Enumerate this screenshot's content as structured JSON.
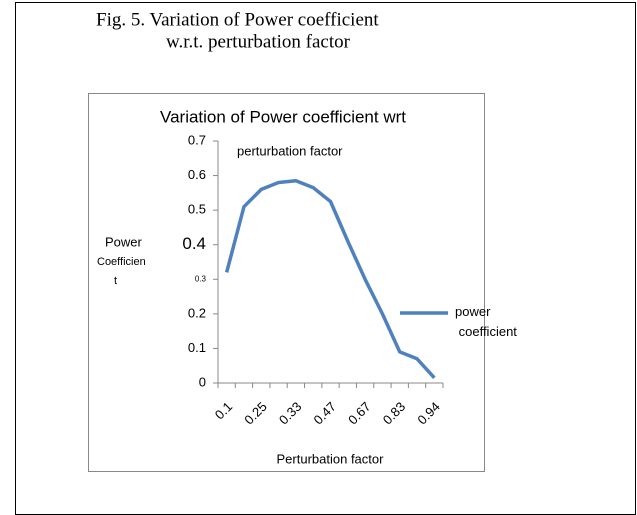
{
  "caption": [
    "Fig. 5. Variation of Power coefficient",
    "w.r.t. perturbation factor"
  ],
  "chart_data": {
    "type": "line",
    "title": [
      "Variation of Power coefficient wrt",
      "perturbation factor"
    ],
    "y_label": [
      "Power",
      "Coefficien",
      "t"
    ],
    "x_label": "Perturbation factor",
    "categories": [
      "0.1",
      null,
      "0.25",
      null,
      "0.33",
      null,
      "0.47",
      null,
      "0.67",
      null,
      "0.83",
      null,
      "0.94"
    ],
    "series": [
      {
        "name": "power coefficient",
        "color": "#4f81bd",
        "values": [
          0.32,
          0.51,
          0.56,
          0.58,
          0.585,
          0.565,
          0.525,
          0.41,
          0.3,
          0.2,
          0.09,
          0.07,
          0.015
        ]
      }
    ],
    "ylim": [
      0,
      0.7
    ],
    "yticks": [
      0,
      0.1,
      0.2,
      0.3,
      0.4,
      0.5,
      0.6,
      0.7
    ],
    "legend": "right",
    "grid": false
  }
}
